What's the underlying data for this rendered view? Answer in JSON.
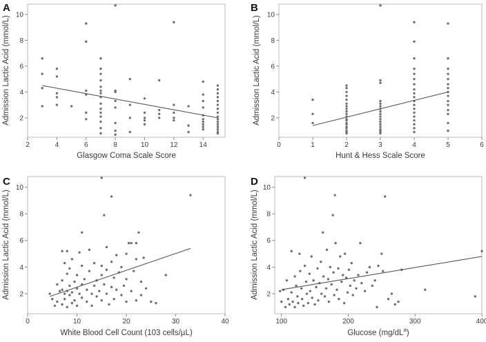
{
  "chart_data": [
    {
      "type": "scatter",
      "panel": "A",
      "xlabel": "Glasgow Coma Scale Score",
      "ylabel": "Admission Lactic Acid (mmol/L)",
      "xlim": [
        2,
        15.5
      ],
      "ylim": [
        0.5,
        10.8
      ],
      "xticks": [
        2,
        4,
        6,
        8,
        10,
        12,
        14
      ],
      "yticks": [
        2,
        4,
        6,
        8,
        10
      ],
      "points": [
        [
          3,
          6.6
        ],
        [
          3,
          5.4
        ],
        [
          3,
          4.3
        ],
        [
          3,
          2.9
        ],
        [
          4,
          5.8
        ],
        [
          4,
          5.2
        ],
        [
          4,
          3.9
        ],
        [
          4,
          3.6
        ],
        [
          4,
          3.0
        ],
        [
          5,
          2.9
        ],
        [
          6,
          9.3
        ],
        [
          6,
          7.9
        ],
        [
          6,
          4.1
        ],
        [
          6,
          3.8
        ],
        [
          6,
          2.4
        ],
        [
          6,
          1.9
        ],
        [
          7,
          6.6
        ],
        [
          7,
          5.8
        ],
        [
          7,
          5.4
        ],
        [
          7,
          4.9
        ],
        [
          7,
          4.4
        ],
        [
          7,
          4.1
        ],
        [
          7,
          3.9
        ],
        [
          7,
          3.6
        ],
        [
          7,
          3.1
        ],
        [
          7,
          2.7
        ],
        [
          7,
          2.4
        ],
        [
          7,
          2.1
        ],
        [
          7,
          1.7
        ],
        [
          7,
          1.2
        ],
        [
          7,
          0.8
        ],
        [
          8,
          10.7
        ],
        [
          8,
          4.1
        ],
        [
          8,
          4.0
        ],
        [
          8,
          3.3
        ],
        [
          8,
          2.8
        ],
        [
          8,
          1.6
        ],
        [
          8,
          1.0
        ],
        [
          8,
          0.7
        ],
        [
          9,
          5.0
        ],
        [
          9,
          3.0
        ],
        [
          9,
          2.0
        ],
        [
          9,
          0.9
        ],
        [
          10,
          3.5
        ],
        [
          10,
          2.4
        ],
        [
          10,
          2.0
        ],
        [
          10,
          1.8
        ],
        [
          10,
          1.5
        ],
        [
          11,
          4.9
        ],
        [
          11,
          2.6
        ],
        [
          11,
          2.3
        ],
        [
          11,
          2.0
        ],
        [
          12,
          9.4
        ],
        [
          12,
          3.0
        ],
        [
          12,
          2.4
        ],
        [
          12,
          2.0
        ],
        [
          12,
          1.8
        ],
        [
          13,
          2.9
        ],
        [
          13,
          1.4
        ],
        [
          13,
          0.9
        ],
        [
          14,
          4.8
        ],
        [
          14,
          3.8
        ],
        [
          14,
          3.3
        ],
        [
          14,
          2.8
        ],
        [
          14,
          2.2
        ],
        [
          14,
          1.9
        ],
        [
          14,
          1.7
        ],
        [
          14,
          1.5
        ],
        [
          14,
          1.3
        ],
        [
          14,
          1.1
        ],
        [
          15,
          4.5
        ],
        [
          15,
          4.2
        ],
        [
          15,
          3.9
        ],
        [
          15,
          3.6
        ],
        [
          15,
          3.3
        ],
        [
          15,
          3.0
        ],
        [
          15,
          2.7
        ],
        [
          15,
          2.4
        ],
        [
          15,
          2.1
        ],
        [
          15,
          1.9
        ],
        [
          15,
          1.7
        ],
        [
          15,
          1.5
        ],
        [
          15,
          1.3
        ],
        [
          15,
          1.1
        ],
        [
          15,
          0.9
        ],
        [
          15,
          0.8
        ]
      ],
      "fit": [
        [
          3,
          4.5
        ],
        [
          15,
          2.0
        ]
      ]
    },
    {
      "type": "scatter",
      "panel": "B",
      "xlabel": "Hunt & Hess Scale Score",
      "ylabel": "Admission Lactic Acid (mmol/L)",
      "xlim": [
        0,
        6
      ],
      "ylim": [
        0.5,
        10.8
      ],
      "xticks": [
        0,
        1,
        2,
        3,
        4,
        5,
        6
      ],
      "yticks": [
        2,
        4,
        6,
        8,
        10
      ],
      "points": [
        [
          1,
          3.4
        ],
        [
          1,
          2.3
        ],
        [
          1,
          1.6
        ],
        [
          2,
          4.5
        ],
        [
          2,
          4.3
        ],
        [
          2,
          4.0
        ],
        [
          2,
          3.7
        ],
        [
          2,
          3.4
        ],
        [
          2,
          3.1
        ],
        [
          2,
          2.9
        ],
        [
          2,
          2.7
        ],
        [
          2,
          2.5
        ],
        [
          2,
          2.3
        ],
        [
          2,
          2.1
        ],
        [
          2,
          1.9
        ],
        [
          2,
          1.8
        ],
        [
          2,
          1.6
        ],
        [
          2,
          1.5
        ],
        [
          2,
          1.3
        ],
        [
          2,
          1.2
        ],
        [
          2,
          1.0
        ],
        [
          2,
          0.9
        ],
        [
          2,
          0.8
        ],
        [
          3,
          10.7
        ],
        [
          3,
          4.9
        ],
        [
          3,
          4.7
        ],
        [
          3,
          3.3
        ],
        [
          3,
          3.1
        ],
        [
          3,
          2.9
        ],
        [
          3,
          2.7
        ],
        [
          3,
          2.5
        ],
        [
          3,
          2.3
        ],
        [
          3,
          2.1
        ],
        [
          3,
          1.9
        ],
        [
          3,
          1.7
        ],
        [
          3,
          1.5
        ],
        [
          3,
          1.3
        ],
        [
          3,
          1.1
        ],
        [
          3,
          1.0
        ],
        [
          3,
          0.9
        ],
        [
          3,
          0.8
        ],
        [
          4,
          9.4
        ],
        [
          4,
          7.9
        ],
        [
          4,
          6.6
        ],
        [
          4,
          5.8
        ],
        [
          4,
          5.4
        ],
        [
          4,
          5.0
        ],
        [
          4,
          4.6
        ],
        [
          4,
          4.2
        ],
        [
          4,
          3.9
        ],
        [
          4,
          3.6
        ],
        [
          4,
          3.3
        ],
        [
          4,
          3.0
        ],
        [
          4,
          2.7
        ],
        [
          4,
          2.4
        ],
        [
          4,
          2.1
        ],
        [
          4,
          1.8
        ],
        [
          4,
          1.5
        ],
        [
          4,
          1.2
        ],
        [
          4,
          0.9
        ],
        [
          5,
          9.3
        ],
        [
          5,
          6.6
        ],
        [
          5,
          5.8
        ],
        [
          5,
          5.4
        ],
        [
          5,
          5.0
        ],
        [
          5,
          4.6
        ],
        [
          5,
          4.3
        ],
        [
          5,
          4.0
        ],
        [
          5,
          3.7
        ],
        [
          5,
          3.3
        ],
        [
          5,
          3.0
        ],
        [
          5,
          2.6
        ],
        [
          5,
          2.3
        ],
        [
          5,
          1.6
        ],
        [
          5,
          1.0
        ]
      ],
      "fit": [
        [
          1,
          1.4
        ],
        [
          5,
          4.0
        ]
      ]
    },
    {
      "type": "scatter",
      "panel": "C",
      "xlabel": "White Blood Cell Count (103 cells/µL)",
      "ylabel": "Admission Lactic Acid (mmol/L)",
      "xlim": [
        0,
        40
      ],
      "ylim": [
        0.5,
        10.8
      ],
      "xticks": [
        0,
        10,
        20,
        30,
        40
      ],
      "yticks": [
        2,
        4,
        6,
        8,
        10
      ],
      "points": [
        [
          4.5,
          2.0
        ],
        [
          5,
          1.6
        ],
        [
          5.5,
          1.1
        ],
        [
          6,
          2.7
        ],
        [
          6,
          1.4
        ],
        [
          6.5,
          2.2
        ],
        [
          7,
          5.2
        ],
        [
          7,
          3.0
        ],
        [
          7,
          2.3
        ],
        [
          7,
          1.2
        ],
        [
          7.5,
          4.3
        ],
        [
          7.5,
          2.0
        ],
        [
          7.5,
          1.6
        ],
        [
          8,
          5.2
        ],
        [
          8,
          3.5
        ],
        [
          8,
          2.2
        ],
        [
          8,
          1.0
        ],
        [
          8.5,
          3.9
        ],
        [
          8.5,
          2.6
        ],
        [
          8.5,
          1.9
        ],
        [
          9,
          4.6
        ],
        [
          9,
          2.1
        ],
        [
          9,
          1.3
        ],
        [
          9.5,
          2.9
        ],
        [
          9.5,
          1.5
        ],
        [
          10,
          3.4
        ],
        [
          10,
          2.4
        ],
        [
          10,
          1.1
        ],
        [
          10.5,
          5.1
        ],
        [
          10.5,
          2.0
        ],
        [
          11,
          6.6
        ],
        [
          11,
          4.1
        ],
        [
          11,
          2.7
        ],
        [
          11,
          1.7
        ],
        [
          11.5,
          3.1
        ],
        [
          12,
          2.3
        ],
        [
          12,
          1.4
        ],
        [
          12.5,
          5.3
        ],
        [
          12.5,
          3.7
        ],
        [
          13,
          2.0
        ],
        [
          13,
          1.1
        ],
        [
          13.5,
          4.3
        ],
        [
          13.5,
          2.6
        ],
        [
          14,
          3.0
        ],
        [
          14,
          1.8
        ],
        [
          14.5,
          2.2
        ],
        [
          15,
          10.7
        ],
        [
          15,
          4.1
        ],
        [
          15,
          3.4
        ],
        [
          15,
          1.5
        ],
        [
          15.5,
          7.9
        ],
        [
          15.5,
          2.7
        ],
        [
          16,
          5.5
        ],
        [
          16,
          3.8
        ],
        [
          16,
          2.0
        ],
        [
          16.5,
          1.2
        ],
        [
          17,
          9.3
        ],
        [
          17,
          4.4
        ],
        [
          17,
          2.5
        ],
        [
          17.5,
          3.2
        ],
        [
          17.5,
          1.6
        ],
        [
          18,
          4.9
        ],
        [
          18,
          2.3
        ],
        [
          18.5,
          3.6
        ],
        [
          19,
          4.0
        ],
        [
          19,
          1.9
        ],
        [
          19.5,
          2.6
        ],
        [
          20,
          5.0
        ],
        [
          20,
          3.1
        ],
        [
          20,
          1.4
        ],
        [
          20.5,
          5.8
        ],
        [
          21,
          5.8
        ],
        [
          21,
          2.2
        ],
        [
          21.5,
          3.7
        ],
        [
          22,
          5.8
        ],
        [
          22,
          4.6
        ],
        [
          22,
          1.5
        ],
        [
          22.5,
          6.6
        ],
        [
          23,
          2.9
        ],
        [
          23,
          1.9
        ],
        [
          23.5,
          4.7
        ],
        [
          24,
          2.4
        ],
        [
          25,
          1.4
        ],
        [
          26,
          1.3
        ],
        [
          28,
          3.4
        ],
        [
          33,
          9.4
        ]
      ],
      "fit": [
        [
          4.5,
          1.8
        ],
        [
          33,
          5.4
        ]
      ]
    },
    {
      "type": "scatter",
      "panel": "D",
      "xlabel": "Glucose (mg/dL",
      "xlabel_sup": "a",
      "xlabel_close": ")",
      "ylabel": "Admission Lactic Acid (mmol/L)",
      "xlim": [
        90,
        400
      ],
      "ylim": [
        0.5,
        10.8
      ],
      "xticks": [
        100,
        200,
        300,
        400
      ],
      "yticks": [
        2,
        4,
        6,
        8,
        10
      ],
      "points": [
        [
          98,
          2.2
        ],
        [
          100,
          1.4
        ],
        [
          103,
          2.3
        ],
        [
          106,
          1.0
        ],
        [
          108,
          3.0
        ],
        [
          110,
          1.6
        ],
        [
          112,
          1.2
        ],
        [
          115,
          5.2
        ],
        [
          115,
          2.1
        ],
        [
          117,
          1.4
        ],
        [
          120,
          3.3
        ],
        [
          120,
          1.0
        ],
        [
          122,
          2.6
        ],
        [
          124,
          1.8
        ],
        [
          125,
          1.3
        ],
        [
          127,
          5.0
        ],
        [
          128,
          3.7
        ],
        [
          130,
          2.4
        ],
        [
          131,
          1.6
        ],
        [
          133,
          1.1
        ],
        [
          135,
          10.7
        ],
        [
          135,
          4.1
        ],
        [
          137,
          2.9
        ],
        [
          138,
          2.0
        ],
        [
          140,
          1.3
        ],
        [
          142,
          3.5
        ],
        [
          143,
          2.2
        ],
        [
          145,
          4.8
        ],
        [
          146,
          1.7
        ],
        [
          148,
          3.0
        ],
        [
          150,
          1.2
        ],
        [
          152,
          2.5
        ],
        [
          154,
          3.9
        ],
        [
          155,
          1.5
        ],
        [
          157,
          2.8
        ],
        [
          159,
          4.4
        ],
        [
          160,
          2.0
        ],
        [
          162,
          6.6
        ],
        [
          163,
          3.3
        ],
        [
          165,
          1.8
        ],
        [
          167,
          2.4
        ],
        [
          168,
          5.3
        ],
        [
          170,
          3.1
        ],
        [
          171,
          1.4
        ],
        [
          173,
          4.0
        ],
        [
          175,
          2.7
        ],
        [
          177,
          7.9
        ],
        [
          178,
          3.6
        ],
        [
          179,
          1.9
        ],
        [
          180,
          9.4
        ],
        [
          181,
          5.8
        ],
        [
          183,
          2.3
        ],
        [
          185,
          3.9
        ],
        [
          186,
          1.6
        ],
        [
          188,
          4.8
        ],
        [
          190,
          2.9
        ],
        [
          192,
          3.4
        ],
        [
          194,
          1.3
        ],
        [
          195,
          5.0
        ],
        [
          197,
          3.2
        ],
        [
          199,
          2.1
        ],
        [
          201,
          3.8
        ],
        [
          203,
          2.6
        ],
        [
          205,
          4.3
        ],
        [
          207,
          1.9
        ],
        [
          209,
          3.0
        ],
        [
          212,
          2.4
        ],
        [
          215,
          3.4
        ],
        [
          218,
          5.8
        ],
        [
          220,
          2.8
        ],
        [
          225,
          2.2
        ],
        [
          228,
          3.6
        ],
        [
          232,
          4.0
        ],
        [
          236,
          2.6
        ],
        [
          240,
          3.0
        ],
        [
          243,
          1.0
        ],
        [
          245,
          4.1
        ],
        [
          250,
          5.0
        ],
        [
          252,
          3.7
        ],
        [
          255,
          9.3
        ],
        [
          260,
          1.6
        ],
        [
          265,
          2.0
        ],
        [
          270,
          1.2
        ],
        [
          275,
          1.4
        ],
        [
          280,
          3.8
        ],
        [
          315,
          2.3
        ],
        [
          390,
          1.8
        ],
        [
          400,
          5.2
        ]
      ],
      "fit": [
        [
          100,
          2.3
        ],
        [
          400,
          4.8
        ]
      ]
    }
  ]
}
